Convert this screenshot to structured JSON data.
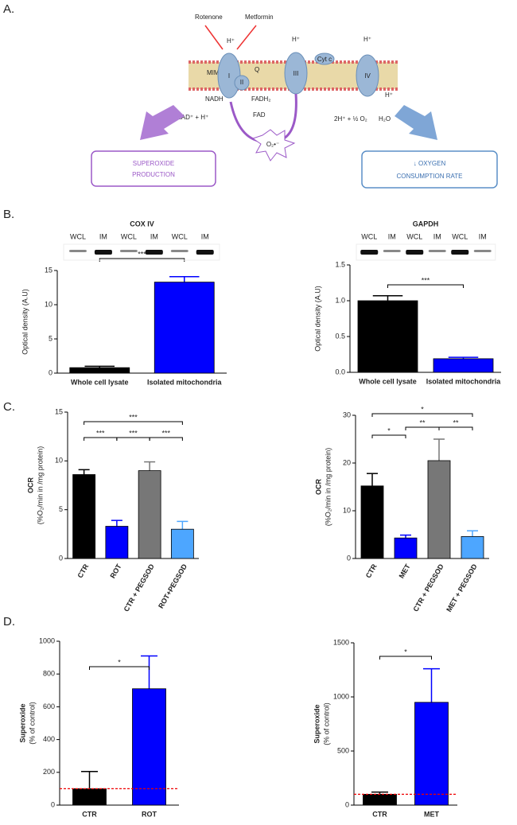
{
  "diagram": {
    "label": "A.",
    "inhibitors": [
      "Rotenone",
      "Metformin"
    ],
    "protons": [
      "H⁺",
      "H⁺",
      "H⁺"
    ],
    "membrane": "MIM",
    "complexes": [
      "I",
      "II",
      "III",
      "IV"
    ],
    "q": "Q",
    "cyt_c": "Cyt c",
    "substrates": [
      "NADH",
      "FADH₂",
      "NAD⁺ + H⁺",
      "FAD",
      "2H⁺ + ½ O₂",
      "H₂O",
      "H⁺"
    ],
    "superoxide": "O₂•⁻",
    "outcomes": [
      [
        "SUPEROXIDE",
        "PRODUCTION"
      ],
      [
        "↓ OXYGEN",
        "CONSUMPTION RATE"
      ]
    ]
  },
  "panels": [
    "B.",
    "C.",
    "D."
  ],
  "chart_data": [
    {
      "type": "bar",
      "title": "COX IV",
      "blot_labels": [
        "WCL",
        "IM",
        "WCL",
        "IM",
        "WCL",
        "IM"
      ],
      "y_label": [
        "Optical density (A.U)"
      ],
      "categories": [
        "Whole cell lysate",
        "Isolated mitochondria"
      ],
      "values": [
        0.8,
        13.3
      ],
      "errors": [
        0.2,
        0.8
      ],
      "colors": [
        "#000000",
        "#0000ff"
      ],
      "ylim": [
        0,
        15
      ],
      "yticks": [
        0,
        5,
        10,
        15
      ],
      "significance": [
        "***"
      ]
    },
    {
      "type": "bar",
      "title": "GAPDH",
      "blot_labels": [
        "WCL",
        "IM",
        "WCL",
        "IM",
        "WCL",
        "IM"
      ],
      "y_label": [
        "Optical density (A.U)"
      ],
      "categories": [
        "Whole cell lysate",
        "Isolated mitochondria"
      ],
      "values": [
        1.0,
        0.19
      ],
      "errors": [
        0.07,
        0.02
      ],
      "colors": [
        "#000000",
        "#0000ff"
      ],
      "ylim": [
        0,
        1.5
      ],
      "yticks": [
        {
          "value": 0,
          "label": "0.0"
        },
        0.5,
        {
          "value": 1,
          "label": "1.0"
        },
        1.5
      ],
      "significance": [
        "***"
      ]
    },
    {
      "type": "bar",
      "y_label": [
        "OCR",
        "(%O₂/min in /mg protein)"
      ],
      "categories": [
        "CTR",
        "ROT",
        "CTR + PEGSOD",
        "ROT+PEGSOD"
      ],
      "values": [
        8.6,
        3.3,
        9.0,
        3.0
      ],
      "errors": [
        0.5,
        0.6,
        0.9,
        0.8
      ],
      "colors": [
        "#000000",
        "#0000ff",
        "#777777",
        "#4da6ff"
      ],
      "ylim": [
        0,
        15
      ],
      "yticks": [
        0,
        5,
        10,
        15
      ],
      "significance": [
        "***",
        "***",
        "***",
        "***"
      ]
    },
    {
      "type": "bar",
      "y_label": [
        "OCR",
        "(%O₂/min in /mg protein)"
      ],
      "categories": [
        "CTR",
        "MET",
        "CTR + PEGSOD",
        "MET + PEGSOD"
      ],
      "values": [
        15.2,
        4.3,
        20.5,
        4.6
      ],
      "errors": [
        2.6,
        0.6,
        4.5,
        1.2
      ],
      "colors": [
        "#000000",
        "#0000ff",
        "#777777",
        "#4da6ff"
      ],
      "ylim": [
        0,
        30
      ],
      "yticks": [
        0,
        10,
        20,
        30
      ],
      "significance": [
        "*",
        "**",
        "**",
        "*"
      ]
    },
    {
      "type": "bar",
      "y_label": [
        "Superoxide",
        "(% of control)"
      ],
      "categories": [
        "CTR",
        "ROT"
      ],
      "values": [
        100,
        710
      ],
      "errors": [
        105,
        200
      ],
      "colors": [
        "#000000",
        "#0000ff"
      ],
      "ylim": [
        0,
        1000
      ],
      "yticks": [
        0,
        200,
        400,
        600,
        800,
        1000
      ],
      "significance": [
        "*"
      ],
      "reference_line": 100
    },
    {
      "type": "bar",
      "y_label": [
        "Superoxide",
        "(% of control)"
      ],
      "categories": [
        "CTR",
        "MET"
      ],
      "values": [
        100,
        950
      ],
      "errors": [
        20,
        310
      ],
      "colors": [
        "#000000",
        "#0000ff"
      ],
      "ylim": [
        0,
        1500
      ],
      "yticks": [
        0,
        500,
        1000,
        1500
      ],
      "significance": [
        "*"
      ],
      "reference_line": 100
    }
  ]
}
